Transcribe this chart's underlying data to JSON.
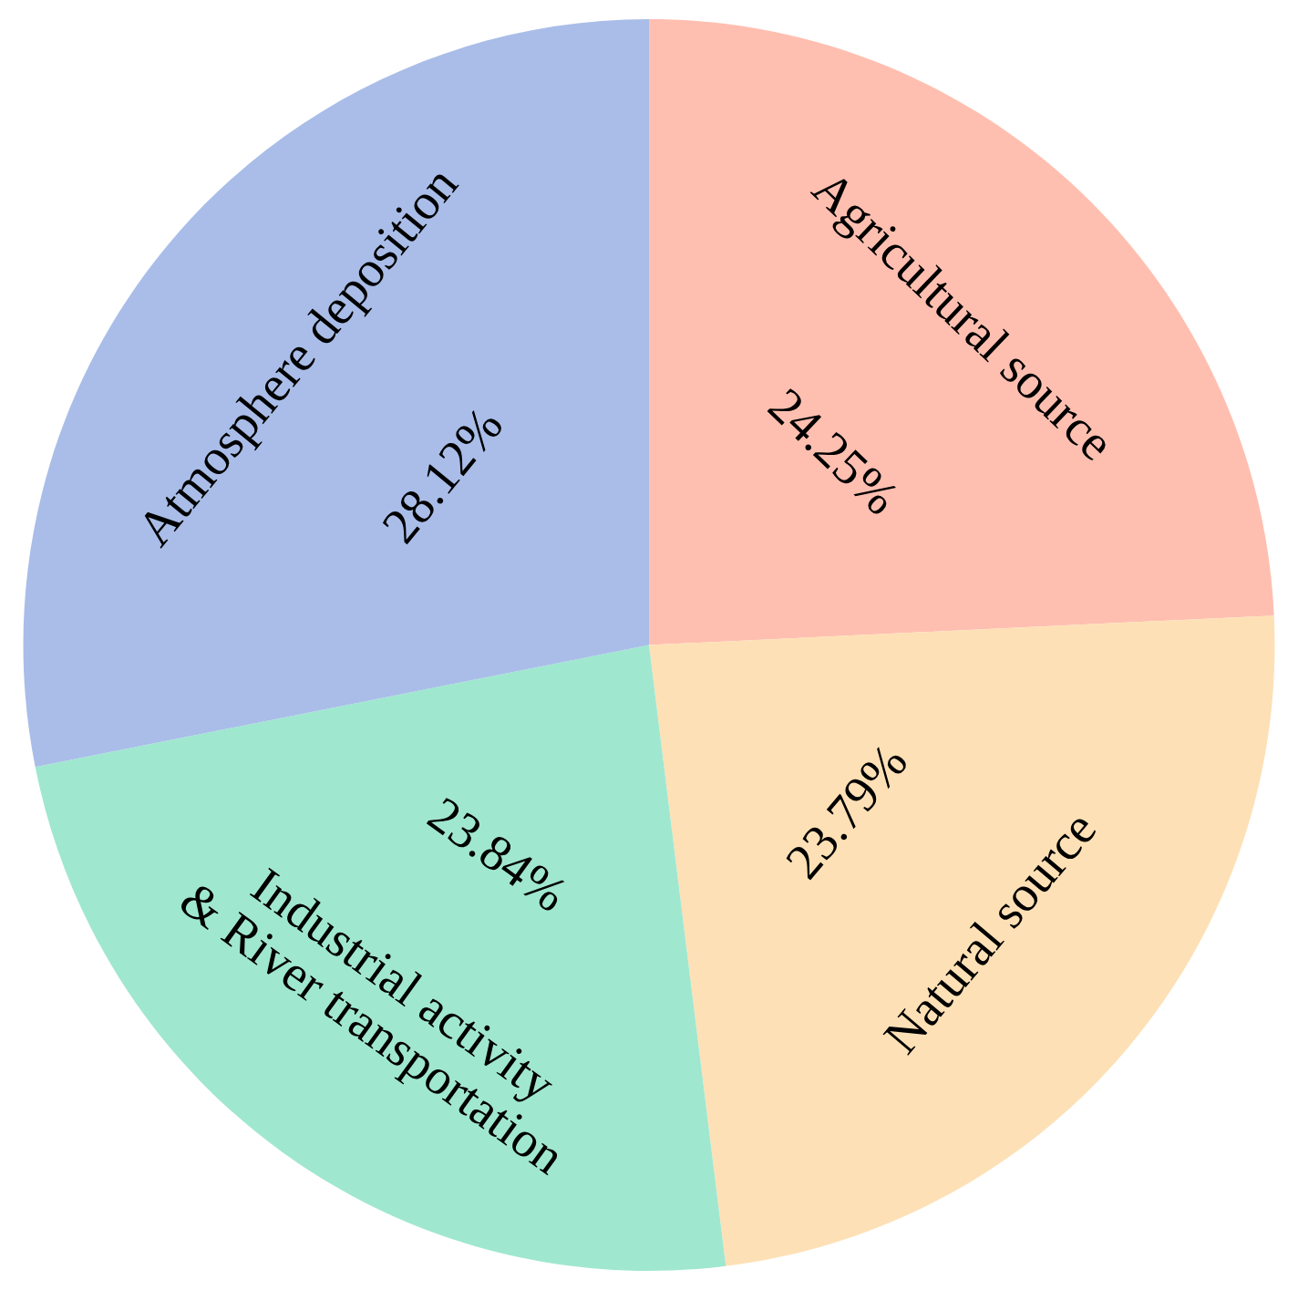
{
  "chart_data": {
    "type": "pie",
    "categories": [
      "Agricultural source",
      "Natural source",
      "Industrial activity\n& River transportation",
      "Atmosphere deposition"
    ],
    "values": [
      24.25,
      23.79,
      23.84,
      28.12
    ],
    "colors": [
      "#ffbfb0",
      "#fee0b6",
      "#a0e7d0",
      "#a9bde8"
    ],
    "value_labels": [
      "24.25%",
      "23.79%",
      "23.84%",
      "28.12%"
    ]
  }
}
